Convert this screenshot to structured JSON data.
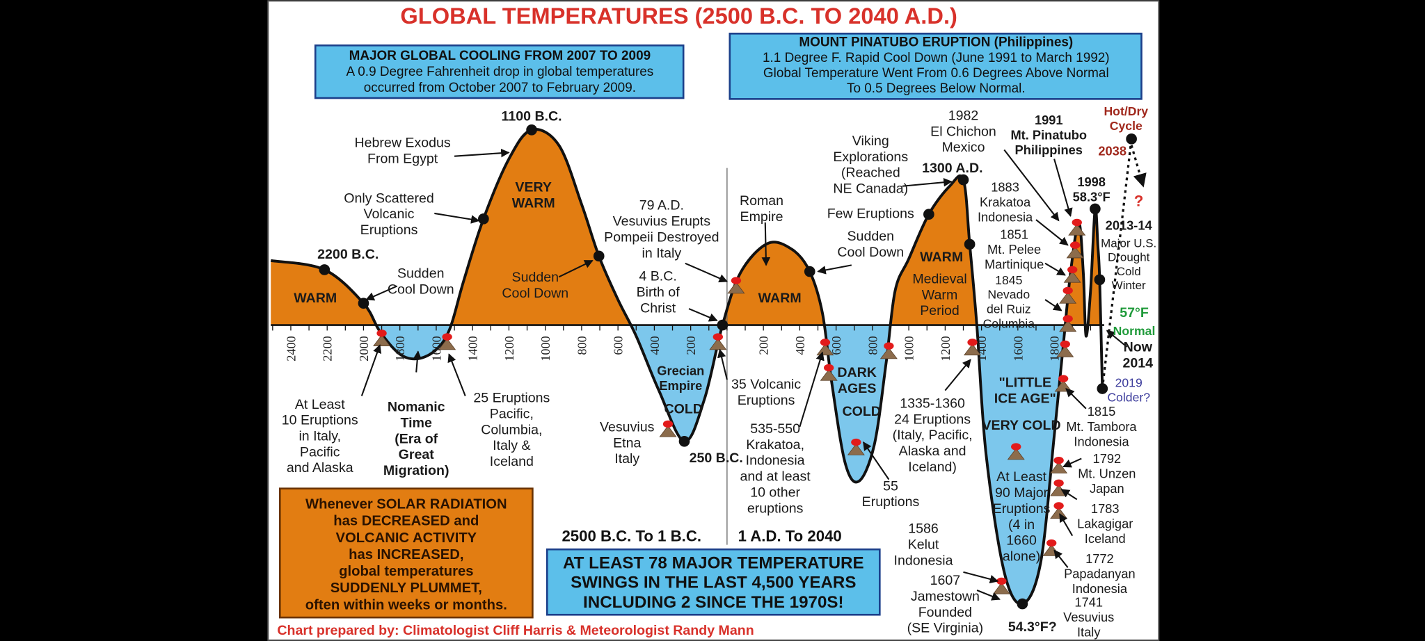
{
  "title": "GLOBAL TEMPERATURES (2500 B.C. TO 2040 A.D.)",
  "boxes": [
    {
      "lines": [
        "MAJOR GLOBAL COOLING FROM 2007 TO 2009",
        "A 0.9 Degree Fahrenheit drop in global temperatures",
        "occurred from October 2007 to February 2009."
      ]
    },
    {
      "lines": [
        "MOUNT PINATUBO ERUPTION (Philippines)",
        "1.1 Degree F. Rapid Cool Down (June 1991 to March 1992)",
        "Global Temperature Went From 0.6 Degrees Above Normal",
        "To 0.5 Degrees Below Normal."
      ]
    },
    {
      "lines": [
        "Whenever SOLAR RADIATION",
        "has DECREASED and",
        "VOLCANIC ACTIVITY",
        "has INCREASED,",
        "global temperatures",
        "SUDDENLY PLUMMET,",
        "often within weeks or months."
      ]
    },
    {
      "lines": [
        "AT LEAST 78 MAJOR TEMPERATURE",
        "SWINGS IN THE LAST 4,500 YEARS",
        "INCLUDING 2 SINCE THE 1970S!"
      ]
    }
  ],
  "eras": [
    "2500 B.C. To 1 B.C.",
    "1 A.D. To 2040"
  ],
  "axis_ticks": [
    "2400",
    "2200",
    "2000",
    "1800",
    "1600",
    "1400",
    "1200",
    "1000",
    "800",
    "600",
    "400",
    "200",
    "200",
    "400",
    "600",
    "800",
    "1000",
    "1200",
    "1400",
    "1600",
    "1800"
  ],
  "annotations": [
    {
      "lines": [
        "2200 B.C."
      ]
    },
    {
      "lines": [
        "WARM"
      ]
    },
    {
      "lines": [
        "Sudden",
        "Cool Down"
      ]
    },
    {
      "lines": [
        "1100 B.C."
      ]
    },
    {
      "lines": [
        "Hebrew Exodus",
        "From Egypt"
      ]
    },
    {
      "lines": [
        "VERY",
        "WARM"
      ]
    },
    {
      "lines": [
        "Only Scattered",
        "Volcanic",
        "Eruptions"
      ]
    },
    {
      "lines": [
        "Sudden",
        "Cool Down"
      ]
    },
    {
      "lines": [
        "At Least",
        "10 Eruptions",
        "in Italy,",
        "Pacific",
        "and Alaska"
      ]
    },
    {
      "lines": [
        "Nomanic",
        "Time",
        "(Era of",
        "Great",
        "Migration)"
      ]
    },
    {
      "lines": [
        "25 Eruptions",
        "Pacific,",
        "Columbia,",
        "Italy &",
        "Iceland"
      ]
    },
    {
      "lines": [
        "79 A.D.",
        "Vesuvius Erupts",
        "Pompeii Destroyed",
        "in Italy"
      ]
    },
    {
      "lines": [
        "4 B.C.",
        "Birth of",
        "Christ"
      ]
    },
    {
      "lines": [
        "Grecian",
        "Empire"
      ]
    },
    {
      "lines": [
        "COLD"
      ]
    },
    {
      "lines": [
        "Vesuvius",
        "Etna",
        "Italy"
      ]
    },
    {
      "lines": [
        "250 B.C."
      ]
    },
    {
      "lines": [
        "35 Volcanic",
        "Eruptions"
      ]
    },
    {
      "lines": [
        "Roman",
        "Empire"
      ]
    },
    {
      "lines": [
        "WARM"
      ]
    },
    {
      "lines": [
        "535-550",
        "Krakatoa,",
        "Indonesia",
        "and at least",
        "10 other",
        "eruptions"
      ]
    },
    {
      "lines": [
        "DARK",
        "AGES"
      ]
    },
    {
      "lines": [
        "COLD"
      ]
    },
    {
      "lines": [
        "55",
        "Eruptions"
      ]
    },
    {
      "lines": [
        "Viking",
        "Explorations",
        "(Reached",
        "NE Canada)"
      ]
    },
    {
      "lines": [
        "Few Eruptions"
      ]
    },
    {
      "lines": [
        "Sudden",
        "Cool Down"
      ]
    },
    {
      "lines": [
        "1300 A.D."
      ]
    },
    {
      "lines": [
        "WARM"
      ]
    },
    {
      "lines": [
        "Medieval",
        "Warm",
        "Period"
      ]
    },
    {
      "lines": [
        "1982",
        "El Chichon",
        "Mexico"
      ]
    },
    {
      "lines": [
        "1335-1360",
        "24 Eruptions",
        "(Italy, Pacific,",
        "Alaska and",
        "Iceland)"
      ]
    },
    {
      "lines": [
        "\"LITTLE",
        "ICE AGE\""
      ]
    },
    {
      "lines": [
        "VERY COLD"
      ]
    },
    {
      "lines": [
        "At Least",
        "90 Major",
        "Eruptions",
        "(4 in",
        "1660",
        "alone)"
      ]
    },
    {
      "lines": [
        "1586",
        "Kelut",
        "Indonesia"
      ]
    },
    {
      "lines": [
        "1607",
        "Jamestown",
        "Founded",
        "(SE Virginia)"
      ]
    },
    {
      "lines": [
        "54.3°F?"
      ]
    },
    {
      "lines": [
        "1991",
        "Mt. Pinatubo",
        "Philippines"
      ]
    },
    {
      "lines": [
        "1883",
        "Krakatoa",
        "Indonesia"
      ]
    },
    {
      "lines": [
        "1851",
        "Mt. Pelee",
        "Martinique"
      ]
    },
    {
      "lines": [
        "1845",
        "Nevado",
        "del Ruiz",
        "Columbia"
      ]
    },
    {
      "lines": [
        "1998",
        "58.3°F"
      ]
    },
    {
      "lines": [
        "Hot/Dry",
        "Cycle"
      ]
    },
    {
      "lines": [
        "2038"
      ]
    },
    {
      "lines": [
        "?"
      ]
    },
    {
      "lines": [
        "2013-14"
      ]
    },
    {
      "lines": [
        "Major U.S.",
        "Drought",
        "Cold",
        "Winter"
      ]
    },
    {
      "lines": [
        "57°F"
      ]
    },
    {
      "lines": [
        "Normal"
      ]
    },
    {
      "lines": [
        "Now",
        "2014"
      ]
    },
    {
      "lines": [
        "2019",
        "Colder?"
      ]
    },
    {
      "lines": [
        "1815",
        "Mt. Tambora",
        "Indonesia"
      ]
    },
    {
      "lines": [
        "1792",
        "Mt. Unzen",
        "Japan"
      ]
    },
    {
      "lines": [
        "1783",
        "Lakagigar",
        "Iceland"
      ]
    },
    {
      "lines": [
        "1772",
        "Papadanyan",
        "Indonesia"
      ]
    },
    {
      "lines": [
        "1741",
        "Vesuvius",
        "Italy"
      ]
    }
  ],
  "footer": "Chart prepared by: Climatologist Cliff Harris & Meteorologist Randy Mann"
}
